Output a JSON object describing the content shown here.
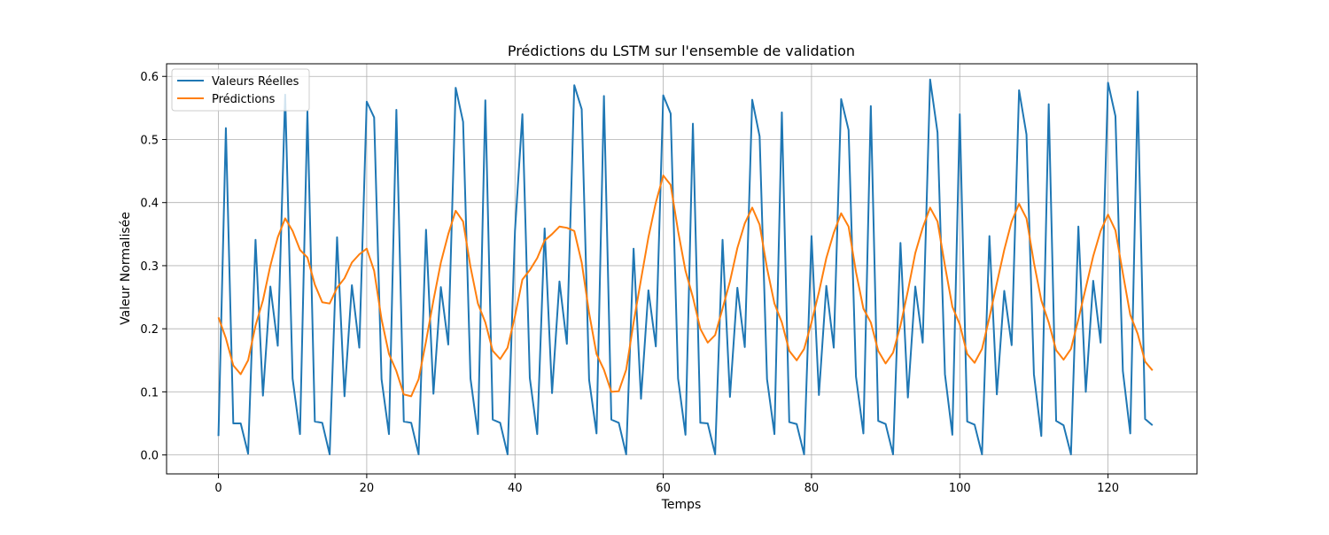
{
  "chart_data": {
    "type": "line",
    "title": "Prédictions du LSTM sur l'ensemble de validation",
    "xlabel": "Temps",
    "ylabel": "Valeur Normalisée",
    "xlim": [
      -7,
      132
    ],
    "ylim": [
      -0.03,
      0.62
    ],
    "xticks": [
      0,
      20,
      40,
      60,
      80,
      100,
      120
    ],
    "xtick_labels": [
      "0",
      "20",
      "40",
      "60",
      "80",
      "100",
      "120"
    ],
    "yticks": [
      0.0,
      0.1,
      0.2,
      0.3,
      0.4,
      0.5,
      0.6
    ],
    "ytick_labels": [
      "0.0",
      "0.1",
      "0.2",
      "0.3",
      "0.4",
      "0.5",
      "0.6"
    ],
    "grid": true,
    "legend_position": "top-left",
    "x": [
      0,
      1,
      2,
      3,
      4,
      5,
      6,
      7,
      8,
      9,
      10,
      11,
      12,
      13,
      14,
      15,
      16,
      17,
      18,
      19,
      20,
      21,
      22,
      23,
      24,
      25,
      26,
      27,
      28,
      29,
      30,
      31,
      32,
      33,
      34,
      35,
      36,
      37,
      38,
      39,
      40,
      41,
      42,
      43,
      44,
      45,
      46,
      47,
      48,
      49,
      50,
      51,
      52,
      53,
      54,
      55,
      56,
      57,
      58,
      59,
      60,
      61,
      62,
      63,
      64,
      65,
      66,
      67,
      68,
      69,
      70,
      71,
      72,
      73,
      74,
      75,
      76,
      77,
      78,
      79,
      80,
      81,
      82,
      83,
      84,
      85,
      86,
      87,
      88,
      89,
      90,
      91,
      92,
      93,
      94,
      95,
      96,
      97,
      98,
      99,
      100,
      101,
      102,
      103,
      104,
      105,
      106,
      107,
      108,
      109,
      110,
      111,
      112,
      113,
      114,
      115,
      116,
      117,
      118,
      119,
      120,
      121,
      122,
      123,
      124,
      125,
      126
    ],
    "series": [
      {
        "name": "Valeurs Réelles",
        "color": "#1f77b4",
        "values": [
          0.03,
          0.518,
          0.05,
          0.05,
          0.002,
          0.341,
          0.094,
          0.267,
          0.173,
          0.571,
          0.121,
          0.033,
          0.545,
          0.053,
          0.051,
          0.001,
          0.345,
          0.093,
          0.269,
          0.17,
          0.56,
          0.535,
          0.12,
          0.033,
          0.547,
          0.053,
          0.051,
          0.001,
          0.357,
          0.097,
          0.266,
          0.175,
          0.582,
          0.528,
          0.121,
          0.033,
          0.562,
          0.056,
          0.051,
          0.001,
          0.355,
          0.54,
          0.122,
          0.033,
          0.359,
          0.098,
          0.275,
          0.176,
          0.586,
          0.548,
          0.119,
          0.034,
          0.569,
          0.056,
          0.051,
          0.001,
          0.327,
          0.089,
          0.261,
          0.172,
          0.57,
          0.541,
          0.121,
          0.032,
          0.525,
          0.051,
          0.05,
          0.001,
          0.341,
          0.092,
          0.265,
          0.171,
          0.563,
          0.505,
          0.12,
          0.033,
          0.543,
          0.052,
          0.049,
          0.001,
          0.347,
          0.095,
          0.268,
          0.17,
          0.564,
          0.515,
          0.124,
          0.034,
          0.553,
          0.054,
          0.049,
          0.001,
          0.336,
          0.091,
          0.267,
          0.178,
          0.595,
          0.511,
          0.128,
          0.032,
          0.54,
          0.053,
          0.048,
          0.001,
          0.347,
          0.096,
          0.26,
          0.174,
          0.578,
          0.508,
          0.128,
          0.03,
          0.556,
          0.054,
          0.047,
          0.001,
          0.362,
          0.1,
          0.276,
          0.178,
          0.59,
          0.537,
          0.133,
          0.034,
          0.576,
          0.057,
          0.047
        ]
      },
      {
        "name": "Prédictions",
        "color": "#ff7f0e",
        "values": [
          0.218,
          0.185,
          0.142,
          0.128,
          0.15,
          0.205,
          0.245,
          0.3,
          0.345,
          0.375,
          0.355,
          0.325,
          0.313,
          0.27,
          0.242,
          0.24,
          0.265,
          0.28,
          0.305,
          0.318,
          0.327,
          0.292,
          0.215,
          0.16,
          0.133,
          0.096,
          0.093,
          0.12,
          0.18,
          0.245,
          0.305,
          0.35,
          0.387,
          0.37,
          0.298,
          0.24,
          0.21,
          0.165,
          0.152,
          0.17,
          0.22,
          0.278,
          0.293,
          0.312,
          0.34,
          0.35,
          0.362,
          0.36,
          0.355,
          0.305,
          0.225,
          0.16,
          0.135,
          0.1,
          0.101,
          0.135,
          0.21,
          0.278,
          0.345,
          0.4,
          0.443,
          0.428,
          0.355,
          0.292,
          0.25,
          0.2,
          0.178,
          0.19,
          0.232,
          0.275,
          0.328,
          0.367,
          0.392,
          0.365,
          0.296,
          0.24,
          0.21,
          0.165,
          0.15,
          0.168,
          0.21,
          0.258,
          0.312,
          0.352,
          0.383,
          0.362,
          0.29,
          0.232,
          0.21,
          0.165,
          0.145,
          0.162,
          0.205,
          0.26,
          0.32,
          0.36,
          0.392,
          0.37,
          0.3,
          0.235,
          0.207,
          0.16,
          0.146,
          0.168,
          0.218,
          0.272,
          0.325,
          0.37,
          0.398,
          0.375,
          0.305,
          0.245,
          0.21,
          0.166,
          0.151,
          0.168,
          0.215,
          0.265,
          0.315,
          0.355,
          0.381,
          0.356,
          0.288,
          0.222,
          0.192,
          0.148,
          0.134
        ]
      }
    ]
  },
  "colors": {
    "background": "#ffffff",
    "grid": "#b0b0b0",
    "axes": "#000000"
  }
}
